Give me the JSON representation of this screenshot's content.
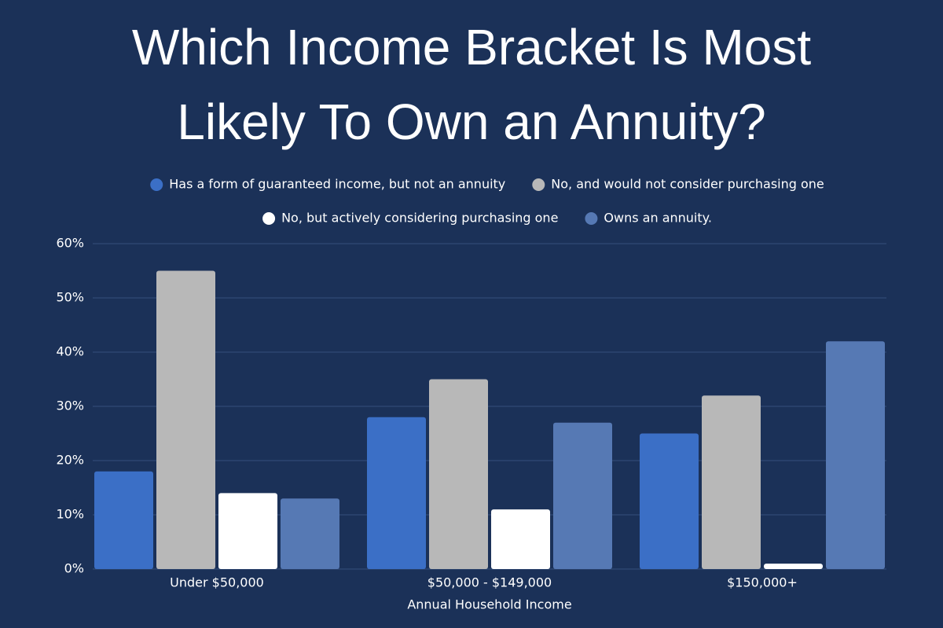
{
  "chart_data": {
    "type": "bar",
    "title": [
      "Which Income Bracket Is Most",
      "Likely To Own an Annuity?"
    ],
    "x_label": "Annual Household Income",
    "categories": [
      "Under $50,000",
      "$50,000 - $149,000",
      "$150,000+"
    ],
    "series": [
      {
        "name": "Has a form of guaranteed income, but not an annuity",
        "color": "#3b6fc6",
        "values": [
          18,
          28,
          25
        ]
      },
      {
        "name": "No, and would not consider purchasing one",
        "color": "#b8b8b8",
        "values": [
          55,
          35,
          32
        ]
      },
      {
        "name": "No, but actively considering purchasing one",
        "color": "#ffffff",
        "values": [
          14,
          11,
          1
        ]
      },
      {
        "name": "Owns an annuity.",
        "color": "#5679b4",
        "values": [
          13,
          27,
          42
        ]
      }
    ],
    "ylim": [
      0,
      60
    ],
    "yticks": [
      {
        "value": 0,
        "label": "0%"
      },
      {
        "value": 10,
        "label": "10%"
      },
      {
        "value": 20,
        "label": "20%"
      },
      {
        "value": 30,
        "label": "30%"
      },
      {
        "value": 40,
        "label": "40%"
      },
      {
        "value": 50,
        "label": "50%"
      },
      {
        "value": 60,
        "label": "60%"
      }
    ],
    "grid": true,
    "legend": "top"
  }
}
